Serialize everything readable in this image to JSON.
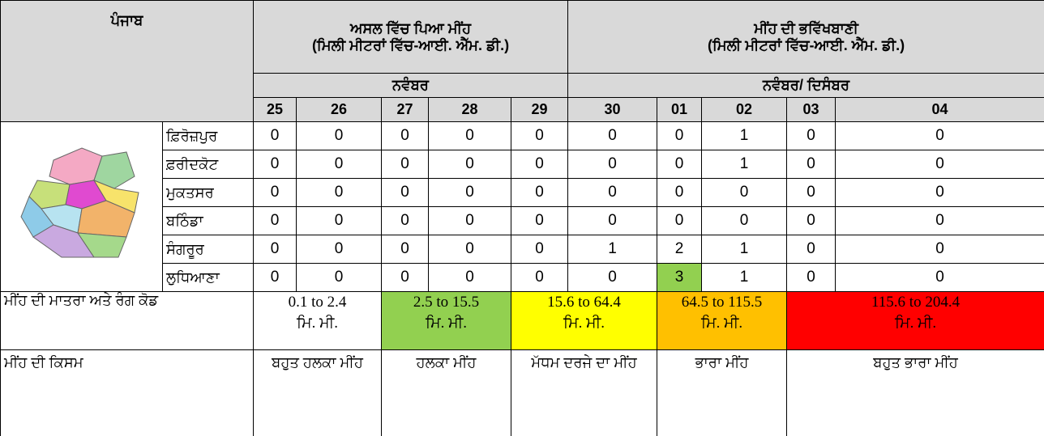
{
  "header": {
    "region": "ਪੰਜਾਬ",
    "observed_title": "ਅਸਲ ਵਿੱਚ ਪਿਆ ਮੀਂਹ",
    "observed_unit": "(ਮਿਲੀ ਮੀਟਰਾਂ ਵਿੱਚ-ਆਈ. ਐੱਮ. ਡੀ.)",
    "forecast_title": "ਮੀਂਹ ਦੀ ਭਵਿੱਖਬਾਣੀ",
    "forecast_unit": "(ਮਿਲੀ ਮੀਟਰਾਂ ਵਿੱਚ-ਆਈ. ਐੱਮ. ਡੀ.)",
    "observed_month": "ਨਵੰਬਰ",
    "forecast_month": "ਨਵੰਬਰ/ ਦਿਸੰਬਰ",
    "dates": [
      "25",
      "26",
      "27",
      "28",
      "29",
      "30",
      "01",
      "02",
      "03",
      "04"
    ]
  },
  "table": {
    "rows": [
      {
        "district": "ਫ਼ਿਰੋਜ਼ਪੁਰ",
        "values": [
          0,
          0,
          0,
          0,
          0,
          0,
          0,
          1,
          0,
          0
        ]
      },
      {
        "district": "ਫ਼ਰੀਦਕੋਟ",
        "values": [
          0,
          0,
          0,
          0,
          0,
          0,
          0,
          1,
          0,
          0
        ]
      },
      {
        "district": "ਮੁਕਤਸਰ",
        "values": [
          0,
          0,
          0,
          0,
          0,
          0,
          0,
          0,
          0,
          0
        ]
      },
      {
        "district": "ਬਠਿੰਡਾ",
        "values": [
          0,
          0,
          0,
          0,
          0,
          0,
          0,
          0,
          0,
          0
        ]
      },
      {
        "district": "ਸੰਗਰੂਰ",
        "values": [
          0,
          0,
          0,
          0,
          0,
          1,
          2,
          1,
          0,
          0
        ]
      },
      {
        "district": "ਲੁਧਿਆਣਾ",
        "values": [
          0,
          0,
          0,
          0,
          0,
          0,
          3,
          1,
          0,
          0
        ]
      }
    ],
    "highlights": [
      {
        "row": 5,
        "col": 6,
        "color": "#92d050"
      }
    ]
  },
  "legend": {
    "label": "ਮੀਂਹ ਦੀ ਮਾਤਰਾ ਅਤੇ ਰੰਗ ਕੋਡ",
    "type_label": "ਮੀਂਹ ਦੀ ਕਿਸਮ",
    "items": [
      {
        "range": "0.1 to 2.4",
        "unit": "ਮਿ. ਮੀ.",
        "color": "#ffffff",
        "type": "ਬਹੁਤ ਹਲਕਾ ਮੀਂਹ"
      },
      {
        "range": "2.5 to 15.5",
        "unit": "ਮਿ. ਮੀ.",
        "color": "#92d050",
        "type": "ਹਲਕਾ ਮੀਂਹ"
      },
      {
        "range": "15.6 to 64.4",
        "unit": "ਮਿ. ਮੀ.",
        "color": "#ffff00",
        "type": "ਮੱਧਮ ਦਰਜੇ ਦਾ ਮੀਂਹ"
      },
      {
        "range": "64.5 to 115.5",
        "unit": "ਮਿ. ਮੀ.",
        "color": "#ffc000",
        "type": "ਭਾਰਾ ਮੀਂਹ"
      },
      {
        "range": "115.6 to 204.4",
        "unit": "ਮਿ. ਮੀ.",
        "color": "#ff0000",
        "type": "ਬਹੁਤ ਭਾਰਾ ਮੀਂਹ"
      }
    ]
  }
}
